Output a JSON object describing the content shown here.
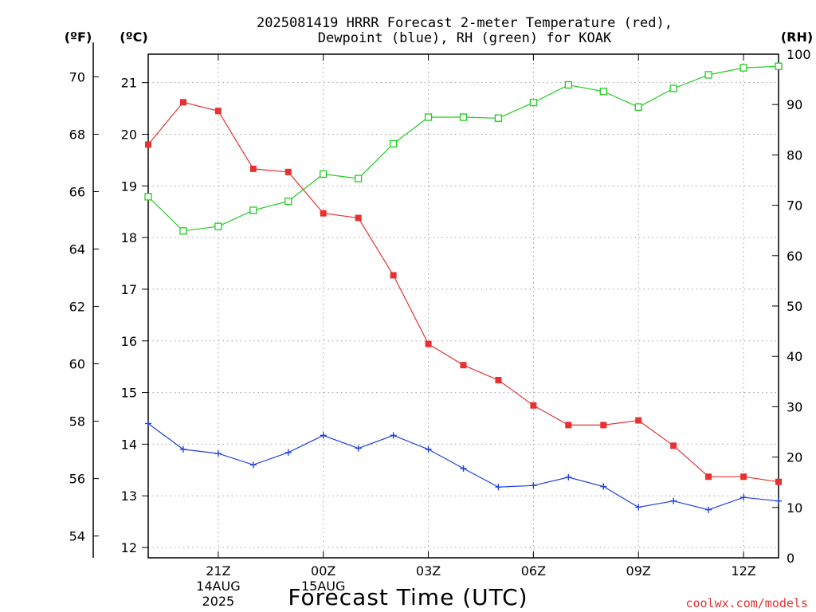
{
  "chart_data": {
    "type": "line",
    "title_line1": "2025081419 HRRR Forecast 2-meter Temperature (red),",
    "title_line2": "Dewpoint (blue), RH (green) for KOAK",
    "xlabel": "Forecast Time (UTC)",
    "credit": "coolwx.com/models",
    "left_units_f": "(ºF)",
    "left_units_c": "(ºC)",
    "right_units": "(RH)",
    "x_ticks": [
      {
        "hour": 21,
        "lines": [
          "21Z",
          "14AUG",
          "2025"
        ]
      },
      {
        "hour": 24,
        "lines": [
          "00Z",
          "15AUG"
        ]
      },
      {
        "hour": 27,
        "lines": [
          "03Z"
        ]
      },
      {
        "hour": 30,
        "lines": [
          "06Z"
        ]
      },
      {
        "hour": 33,
        "lines": [
          "09Z"
        ]
      },
      {
        "hour": 36,
        "lines": [
          "12Z"
        ]
      }
    ],
    "xlim": [
      19,
      37
    ],
    "celsius_ticks": [
      12,
      13,
      14,
      15,
      16,
      17,
      18,
      19,
      20,
      21
    ],
    "celsius_lim": [
      11.8,
      21.55
    ],
    "fahrenheit_ticks": [
      54,
      56,
      58,
      60,
      62,
      64,
      66,
      68,
      70
    ],
    "rh_ticks": [
      0,
      10,
      20,
      30,
      40,
      50,
      60,
      70,
      80,
      90,
      100
    ],
    "rh_lim": [
      0,
      100
    ],
    "hours": [
      19,
      20,
      21,
      22,
      23,
      24,
      25,
      26,
      27,
      28,
      29,
      30,
      31,
      32,
      33,
      34,
      35,
      36,
      37
    ],
    "series": [
      {
        "color": "#e83030",
        "marker": "filled-square",
        "axis": "celsius",
        "values": [
          19.8,
          20.62,
          20.45,
          19.33,
          19.27,
          18.47,
          18.38,
          17.27,
          15.94,
          15.53,
          15.24,
          14.75,
          14.37,
          14.37,
          14.46,
          13.97,
          13.37,
          13.37,
          13.27
        ]
      },
      {
        "color": "#2040e0",
        "marker": "plus",
        "axis": "celsius",
        "values": [
          14.4,
          13.9,
          13.82,
          13.6,
          13.84,
          14.17,
          13.92,
          14.17,
          13.9,
          13.53,
          13.17,
          13.2,
          13.36,
          13.18,
          12.78,
          12.9,
          12.73,
          12.97,
          12.9
        ]
      },
      {
        "color": "#20cc20",
        "marker": "open-square",
        "axis": "rh",
        "values": [
          71.7,
          64.9,
          65.8,
          69.0,
          70.8,
          76.2,
          75.3,
          82.2,
          87.5,
          87.5,
          87.3,
          90.4,
          93.9,
          92.6,
          89.5,
          93.2,
          95.9,
          97.3,
          97.6
        ]
      }
    ]
  }
}
